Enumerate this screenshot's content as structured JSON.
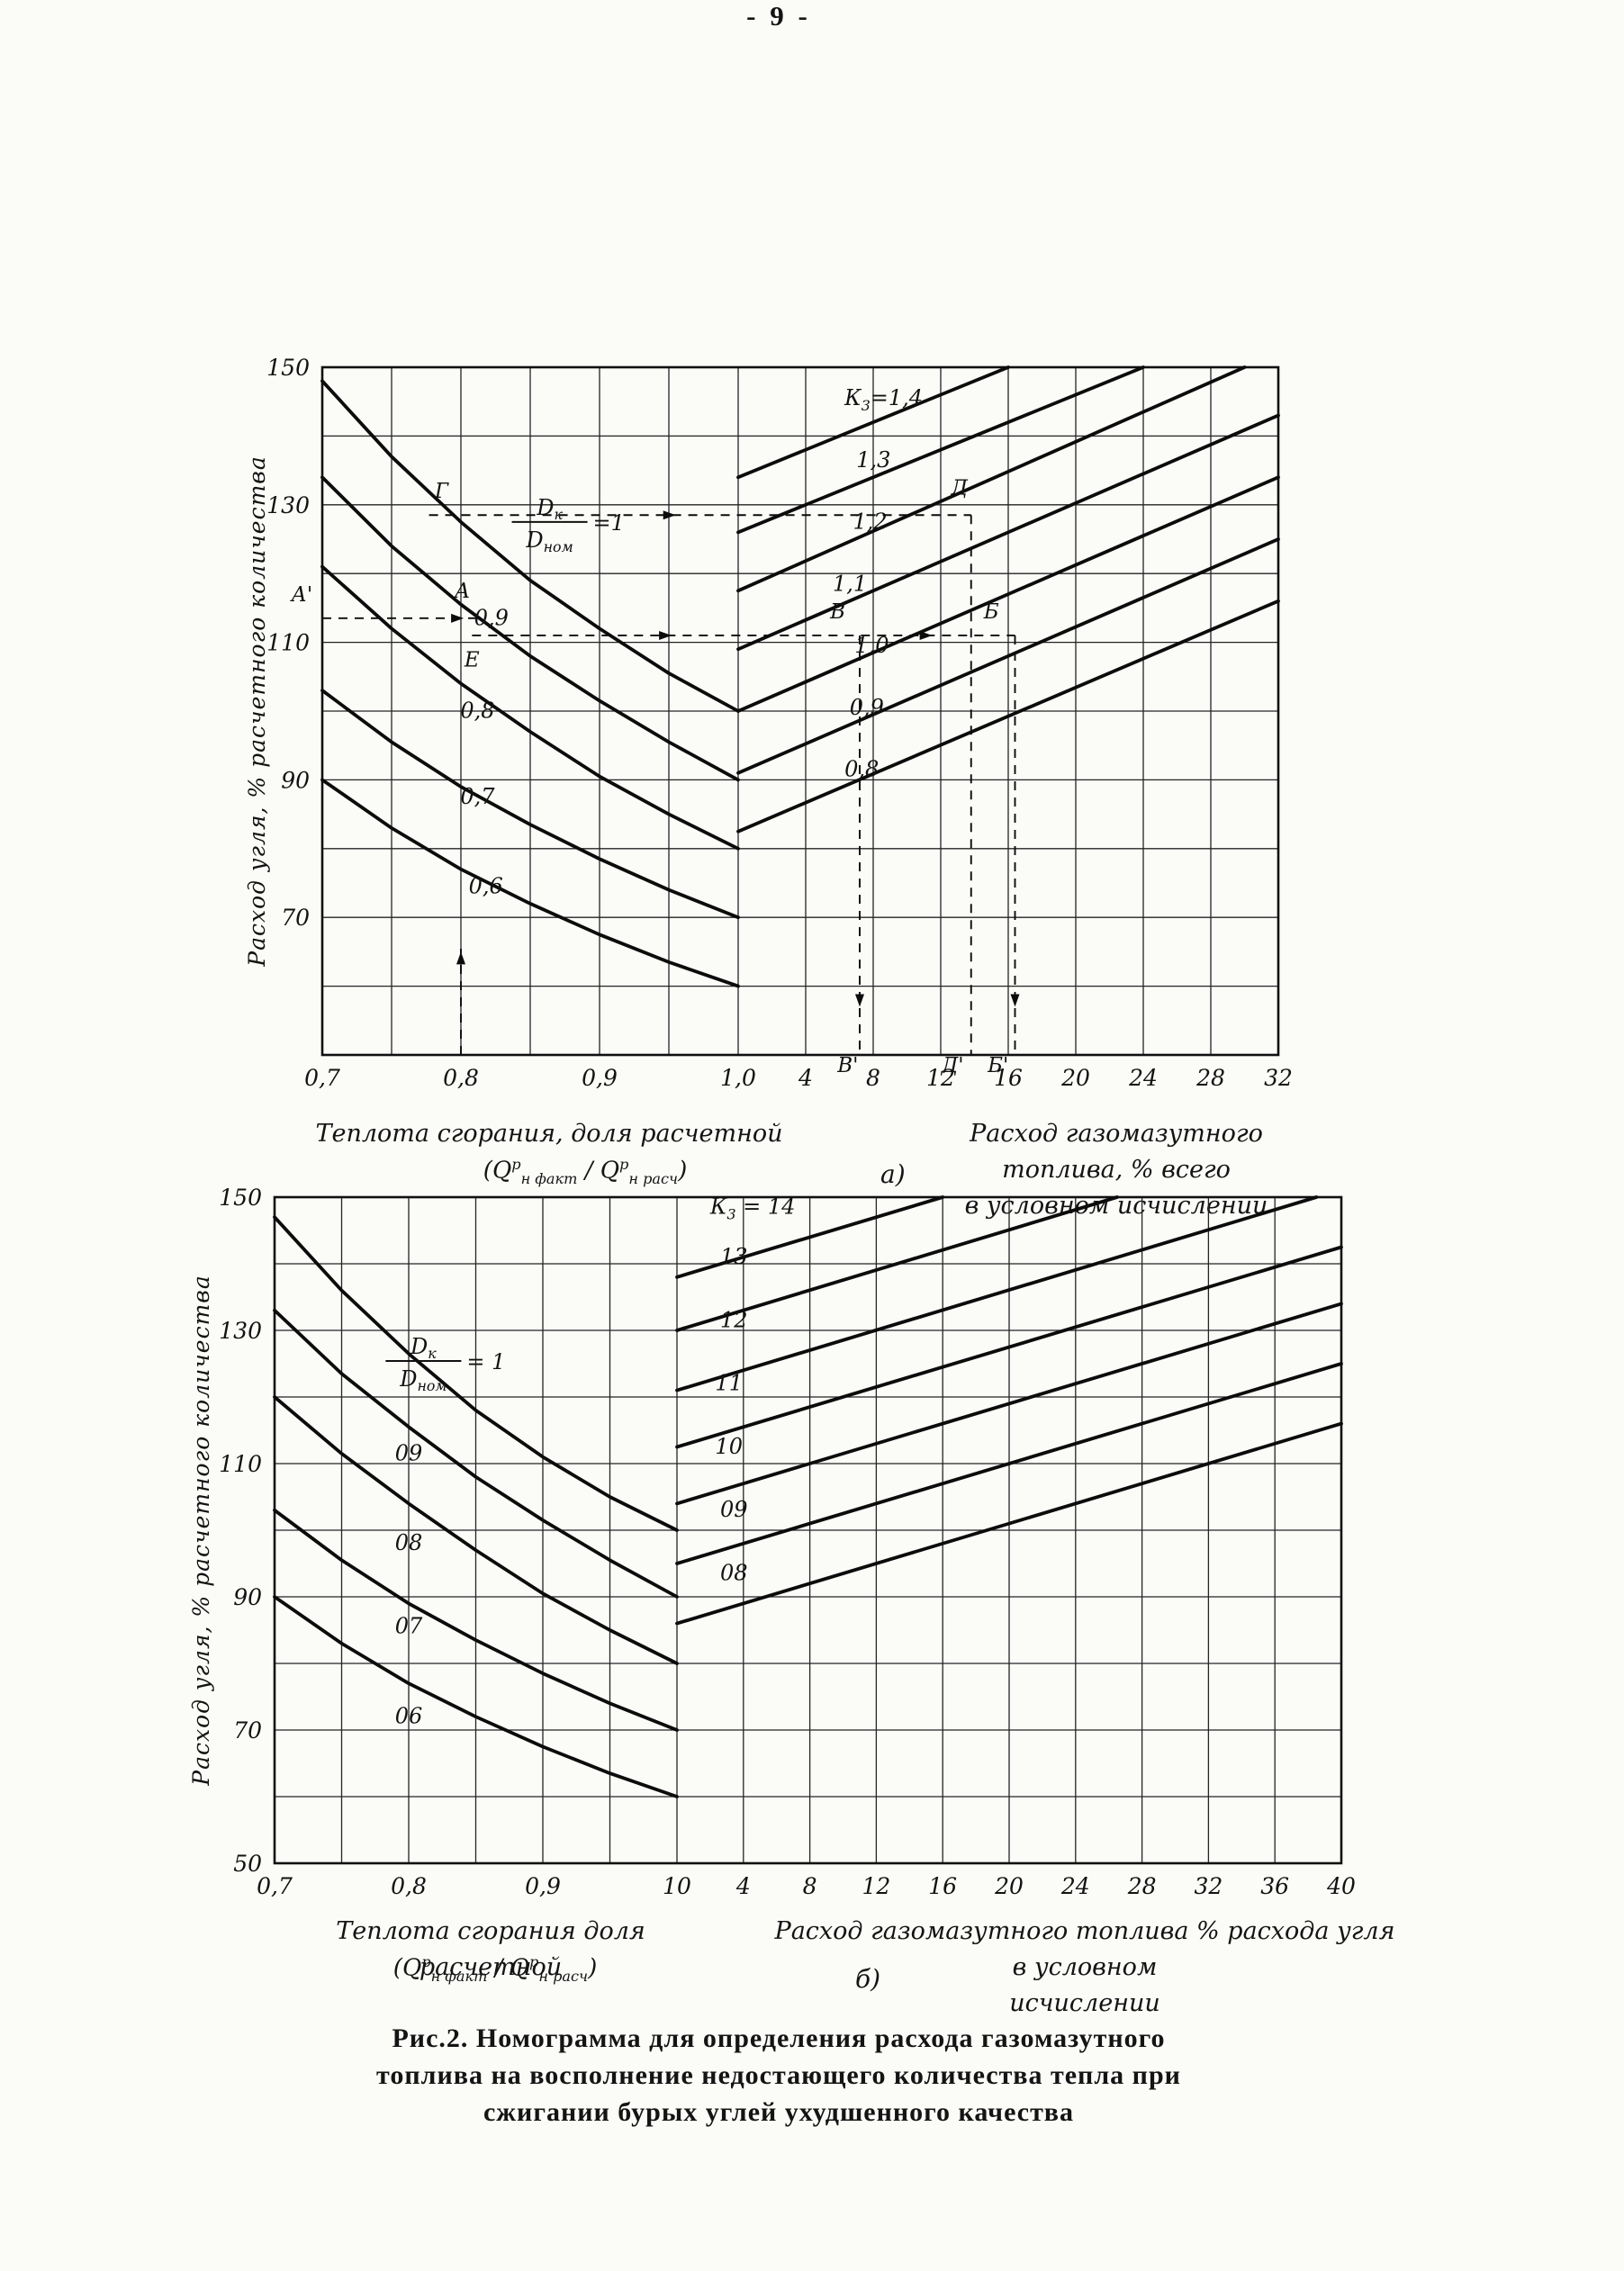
{
  "page": {
    "number_label": "- 9 -"
  },
  "figure_caption": {
    "line1": "Рис.2. Номограмма для определения расхода газомазутного",
    "line2": "топлива на восполнение недостающего количества тепла при",
    "line3": "сжигании бурых углей ухудшенного качества"
  },
  "chart_data": [
    {
      "id": "a",
      "type": "line",
      "panel_label": "а)",
      "ylabel": "Расход угля, % расчетного количества",
      "y_range": [
        50,
        150
      ],
      "y_grid_step": 10,
      "y_ticks": [
        150,
        130,
        110,
        90,
        70
      ],
      "grid": true,
      "x_left": {
        "range": [
          0.7,
          1.0
        ],
        "grid_step": 0.05,
        "ticks": [
          {
            "v": 0.7,
            "label": "0,7"
          },
          {
            "v": 0.8,
            "label": "0,8"
          },
          {
            "v": 0.9,
            "label": "0,9"
          },
          {
            "v": 1.0,
            "label": "1,0"
          }
        ],
        "caption": "Теплота сгорания, доля расчетной"
      },
      "x_right": {
        "range": [
          0,
          32
        ],
        "grid_step": 4,
        "ticks": [
          {
            "v": 4,
            "label": "4"
          },
          {
            "v": 8,
            "label": "8"
          },
          {
            "v": 12,
            "label": "12"
          },
          {
            "v": 16,
            "label": "16"
          },
          {
            "v": 20,
            "label": "20"
          },
          {
            "v": 24,
            "label": "24"
          },
          {
            "v": 28,
            "label": "28"
          },
          {
            "v": 32,
            "label": "32"
          }
        ],
        "caption1": "Расход газомазутного топлива, % всего",
        "caption2": "в условном  исчислении"
      },
      "formula": {
        "open": "(",
        "sym": "Q",
        "sup": "р",
        "sub_a": "н факт",
        "div": "/",
        "sym2": "Q",
        "sup2": "р",
        "sub_b": "н расч",
        "close": ")"
      },
      "k_prefix": {
        "sym": "К",
        "sub": "3",
        "eq": "="
      },
      "left_curves": [
        {
          "d": "1",
          "points": [
            [
              0.7,
              148
            ],
            [
              0.75,
              137
            ],
            [
              0.8,
              127.5
            ],
            [
              0.85,
              119
            ],
            [
              0.9,
              112
            ],
            [
              0.95,
              105.5
            ],
            [
              1.0,
              100
            ]
          ],
          "label": null
        },
        {
          "d": "0,9",
          "points": [
            [
              0.7,
              134
            ],
            [
              0.75,
              124
            ],
            [
              0.8,
              115.5
            ],
            [
              0.85,
              108
            ],
            [
              0.9,
              101.5
            ],
            [
              0.95,
              95.5
            ],
            [
              1.0,
              90
            ]
          ],
          "label": {
            "x": 0.822,
            "y": 112.5,
            "text": "0,9"
          }
        },
        {
          "d": "0,8",
          "points": [
            [
              0.7,
              121
            ],
            [
              0.75,
              112
            ],
            [
              0.8,
              104
            ],
            [
              0.85,
              97
            ],
            [
              0.9,
              90.5
            ],
            [
              0.95,
              85
            ],
            [
              1.0,
              80
            ]
          ],
          "label": {
            "x": 0.812,
            "y": 99,
            "text": "0,8"
          }
        },
        {
          "d": "0,7",
          "points": [
            [
              0.7,
              103
            ],
            [
              0.75,
              95.5
            ],
            [
              0.8,
              89
            ],
            [
              0.85,
              83.5
            ],
            [
              0.9,
              78.5
            ],
            [
              0.95,
              74
            ],
            [
              1.0,
              70
            ]
          ],
          "label": {
            "x": 0.812,
            "y": 86.5,
            "text": "0,7"
          }
        },
        {
          "d": "0,6",
          "points": [
            [
              0.7,
              90
            ],
            [
              0.75,
              83
            ],
            [
              0.8,
              77
            ],
            [
              0.85,
              72
            ],
            [
              0.9,
              67.5
            ],
            [
              0.95,
              63.5
            ],
            [
              1.0,
              60
            ]
          ],
          "label": {
            "x": 0.818,
            "y": 73.5,
            "text": "0,6"
          }
        }
      ],
      "fraction_label": {
        "s": "L",
        "x": 0.864,
        "y": 127.5,
        "num": "D",
        "num_sub": "к",
        "den": "D",
        "den_sub": "ном",
        "eq": "=1"
      },
      "right_lines": [
        {
          "k": "1,4",
          "prefix": true,
          "points": [
            [
              0,
              134
            ],
            [
              16,
              150
            ]
          ],
          "label": {
            "x": 6.3,
            "y": 144.5
          }
        },
        {
          "k": "1,3",
          "prefix": false,
          "points": [
            [
              0,
              126
            ],
            [
              24,
              150
            ]
          ],
          "label": {
            "x": 7.0,
            "y": 135.5
          }
        },
        {
          "k": "1,2",
          "prefix": false,
          "points": [
            [
              0,
              117.5
            ],
            [
              30,
              150
            ]
          ],
          "label": {
            "x": 6.8,
            "y": 126.5
          }
        },
        {
          "k": "1,1",
          "prefix": false,
          "points": [
            [
              0,
              109
            ],
            [
              32,
              143
            ]
          ],
          "label": {
            "x": 5.6,
            "y": 117.5
          }
        },
        {
          "k": "1,0",
          "prefix": false,
          "points": [
            [
              0,
              100
            ],
            [
              32,
              134
            ]
          ],
          "label": {
            "x": 6.9,
            "y": 108.5
          }
        },
        {
          "k": "0,9",
          "prefix": false,
          "points": [
            [
              0,
              91
            ],
            [
              32,
              125
            ]
          ],
          "label": {
            "x": 6.6,
            "y": 99.5
          }
        },
        {
          "k": "0,8",
          "prefix": false,
          "points": [
            [
              0,
              82.5
            ],
            [
              32,
              116
            ]
          ],
          "label": {
            "x": 6.3,
            "y": 90.5
          }
        }
      ],
      "construction": {
        "dashed_segments": [
          {
            "a": {
              "s": "L",
              "x": 0.777,
              "y": 128.5
            },
            "b": {
              "s": "R",
              "x": 13.8,
              "y": 128.5
            }
          },
          {
            "a": {
              "s": "L",
              "x": 0.7,
              "y": 113.5
            },
            "b": {
              "s": "L",
              "x": 0.814,
              "y": 113.5
            }
          },
          {
            "a": {
              "s": "L",
              "x": 0.808,
              "y": 111
            },
            "b": {
              "s": "R",
              "x": 16.4,
              "y": 111
            }
          },
          {
            "a": {
              "s": "L",
              "x": 0.8,
              "y": 50
            },
            "b": {
              "s": "L",
              "x": 0.8,
              "y": 66
            }
          },
          {
            "a": {
              "s": "R",
              "x": 7.2,
              "y": 111
            },
            "b": {
              "s": "R",
              "x": 7.2,
              "y": 50
            }
          },
          {
            "a": {
              "s": "R",
              "x": 13.8,
              "y": 128.5
            },
            "b": {
              "s": "R",
              "x": 13.8,
              "y": 50
            }
          },
          {
            "a": {
              "s": "R",
              "x": 16.4,
              "y": 111
            },
            "b": {
              "s": "R",
              "x": 16.4,
              "y": 50
            }
          }
        ],
        "arrows": [
          {
            "s": "L",
            "x": 0.955,
            "y": 128.5,
            "dir": "r"
          },
          {
            "s": "L",
            "x": 0.802,
            "y": 113.5,
            "dir": "r"
          },
          {
            "s": "L",
            "x": 0.952,
            "y": 111,
            "dir": "r"
          },
          {
            "s": "R",
            "x": 11.5,
            "y": 111,
            "dir": "r"
          },
          {
            "s": "L",
            "x": 0.8,
            "y": 65,
            "dir": "u"
          },
          {
            "s": "R",
            "x": 7.2,
            "y": 57,
            "dir": "d"
          },
          {
            "s": "R",
            "x": 16.4,
            "y": 57,
            "dir": "d"
          }
        ],
        "point_labels": [
          {
            "s": "L",
            "x": 0.786,
            "y": 131,
            "text": "Г"
          },
          {
            "s": "R",
            "x": 13.1,
            "y": 131.5,
            "text": "Д"
          },
          {
            "s": "L",
            "x": 0.693,
            "y": 116,
            "text": "А'",
            "anchor": "end"
          },
          {
            "s": "L",
            "x": 0.801,
            "y": 116.5,
            "text": "А"
          },
          {
            "s": "L",
            "x": 0.808,
            "y": 106.5,
            "text": "Е"
          },
          {
            "s": "R",
            "x": 5.9,
            "y": 113.5,
            "text": "В"
          },
          {
            "s": "R",
            "x": 15.0,
            "y": 113.5,
            "text": "Б"
          },
          {
            "s": "R",
            "x": 6.5,
            "y": 47.5,
            "text": "В'"
          },
          {
            "s": "R",
            "x": 12.7,
            "y": 47.5,
            "text": "Д'"
          },
          {
            "s": "R",
            "x": 15.4,
            "y": 47.5,
            "text": "Б'"
          }
        ]
      }
    },
    {
      "id": "b",
      "type": "line",
      "panel_label": "б)",
      "ylabel": "Расход угля, % расчетного количества",
      "y_range": [
        50,
        150
      ],
      "y_grid_step": 10,
      "y_ticks": [
        150,
        130,
        110,
        90,
        70,
        50
      ],
      "grid": true,
      "x_left": {
        "range": [
          0.7,
          1.0
        ],
        "grid_step": 0.05,
        "ticks": [
          {
            "v": 0.7,
            "label": "0,7"
          },
          {
            "v": 0.8,
            "label": "0,8"
          },
          {
            "v": 0.9,
            "label": "0,9"
          },
          {
            "v": 1.0,
            "label": "10"
          }
        ],
        "caption": "Теплота сгорания  доля расчетной"
      },
      "x_right": {
        "range": [
          0,
          40
        ],
        "grid_step": 4,
        "ticks": [
          {
            "v": 4,
            "label": "4"
          },
          {
            "v": 8,
            "label": "8"
          },
          {
            "v": 12,
            "label": "12"
          },
          {
            "v": 16,
            "label": "16"
          },
          {
            "v": 20,
            "label": "20"
          },
          {
            "v": 24,
            "label": "24"
          },
          {
            "v": 28,
            "label": "28"
          },
          {
            "v": 32,
            "label": "32"
          },
          {
            "v": 36,
            "label": "36"
          },
          {
            "v": 40,
            "label": "40"
          }
        ],
        "caption1": "Расход газомазутного топлива  % расхода угля в условном",
        "caption2": "исчислении"
      },
      "formula": {
        "open": "(",
        "sym": "Q",
        "sup": "р",
        "sub_a": "н факт",
        "div": "/",
        "sym2": "Q",
        "sup2": "р",
        "sub_b": "н расч",
        "close": ")"
      },
      "k_prefix": {
        "sym": "К",
        "sub": "3",
        "eq": " = "
      },
      "left_curves": [
        {
          "d": "1",
          "points": [
            [
              0.7,
              147
            ],
            [
              0.75,
              136
            ],
            [
              0.8,
              126.5
            ],
            [
              0.85,
              118
            ],
            [
              0.9,
              111
            ],
            [
              0.95,
              105
            ],
            [
              1.0,
              100
            ]
          ],
          "label": null
        },
        {
          "d": "09",
          "points": [
            [
              0.7,
              133
            ],
            [
              0.75,
              123.5
            ],
            [
              0.8,
              115.5
            ],
            [
              0.85,
              108
            ],
            [
              0.9,
              101.5
            ],
            [
              0.95,
              95.5
            ],
            [
              1.0,
              90
            ]
          ],
          "label": {
            "x": 0.8,
            "y": 110.5,
            "text": "09"
          }
        },
        {
          "d": "08",
          "points": [
            [
              0.7,
              120
            ],
            [
              0.75,
              111.5
            ],
            [
              0.8,
              104
            ],
            [
              0.85,
              97
            ],
            [
              0.9,
              90.5
            ],
            [
              0.95,
              85
            ],
            [
              1.0,
              80
            ]
          ],
          "label": {
            "x": 0.8,
            "y": 97,
            "text": "08"
          }
        },
        {
          "d": "07",
          "points": [
            [
              0.7,
              103
            ],
            [
              0.75,
              95.5
            ],
            [
              0.8,
              89
            ],
            [
              0.85,
              83.5
            ],
            [
              0.9,
              78.5
            ],
            [
              0.95,
              74
            ],
            [
              1.0,
              70
            ]
          ],
          "label": {
            "x": 0.8,
            "y": 84.5,
            "text": "07"
          }
        },
        {
          "d": "06",
          "points": [
            [
              0.7,
              90
            ],
            [
              0.75,
              83
            ],
            [
              0.8,
              77
            ],
            [
              0.85,
              72
            ],
            [
              0.9,
              67.5
            ],
            [
              0.95,
              63.5
            ],
            [
              1.0,
              60
            ]
          ],
          "label": {
            "x": 0.8,
            "y": 71,
            "text": "06"
          }
        }
      ],
      "fraction_label": {
        "s": "L",
        "x": 0.811,
        "y": 125.4,
        "num": "D",
        "num_sub": "к",
        "den": "D",
        "den_sub": "ном",
        "eq": "= 1"
      },
      "right_lines": [
        {
          "k": "14",
          "prefix": true,
          "points": [
            [
              0,
              138
            ],
            [
              16,
              150
            ]
          ],
          "label": {
            "x": 2.0,
            "y": 147.5
          }
        },
        {
          "k": "13",
          "prefix": false,
          "points": [
            [
              0,
              130
            ],
            [
              26.5,
              150
            ]
          ],
          "label": {
            "x": 2.6,
            "y": 140
          }
        },
        {
          "k": "12",
          "prefix": false,
          "points": [
            [
              0,
              121
            ],
            [
              38.5,
              150
            ]
          ],
          "label": {
            "x": 2.6,
            "y": 130.5
          }
        },
        {
          "k": "11",
          "prefix": false,
          "points": [
            [
              0,
              112.5
            ],
            [
              40,
              142.5
            ]
          ],
          "label": {
            "x": 2.3,
            "y": 121
          }
        },
        {
          "k": "10",
          "prefix": false,
          "points": [
            [
              0,
              104
            ],
            [
              40,
              134
            ]
          ],
          "label": {
            "x": 2.3,
            "y": 111.5
          }
        },
        {
          "k": "09",
          "prefix": false,
          "points": [
            [
              0,
              95
            ],
            [
              40,
              125
            ]
          ],
          "label": {
            "x": 2.6,
            "y": 102
          }
        },
        {
          "k": "08",
          "prefix": false,
          "points": [
            [
              0,
              86
            ],
            [
              40,
              116
            ]
          ],
          "label": {
            "x": 2.6,
            "y": 92.5
          }
        }
      ],
      "construction": null
    }
  ]
}
